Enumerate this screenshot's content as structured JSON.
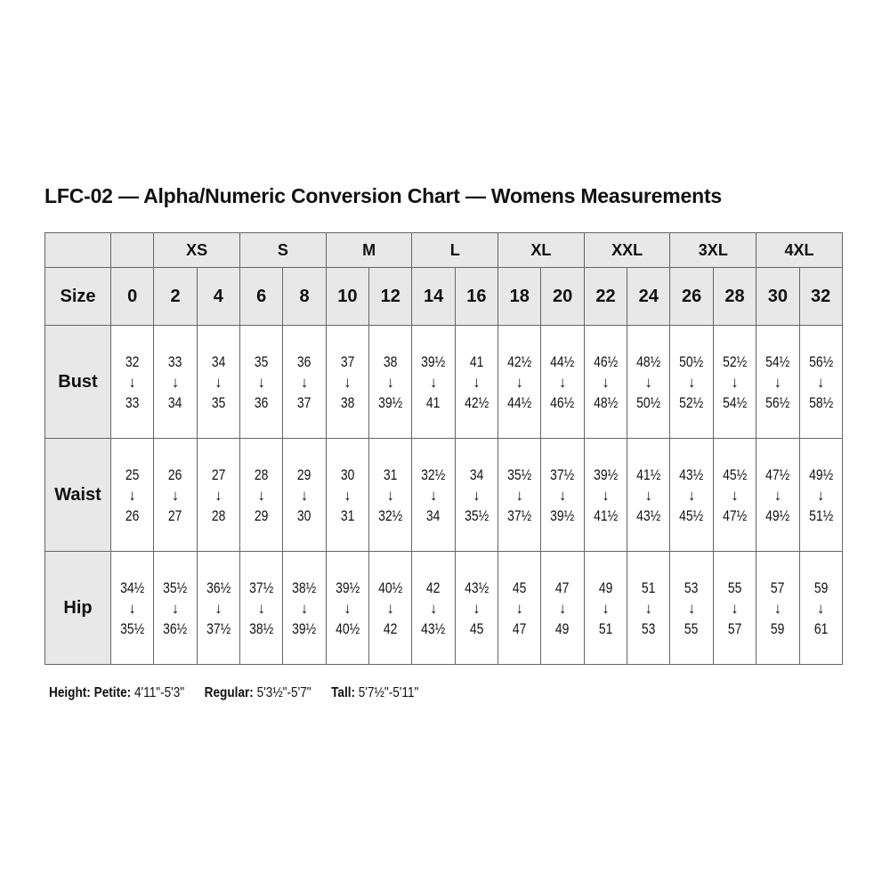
{
  "title": "LFC-02 — Alpha/Numeric Conversion Chart — Womens Measurements",
  "arrow_glyph": "↓",
  "alpha_sizes": [
    {
      "label": "",
      "span": 1
    },
    {
      "label": "XS",
      "span": 2
    },
    {
      "label": "S",
      "span": 2
    },
    {
      "label": "M",
      "span": 2
    },
    {
      "label": "L",
      "span": 2
    },
    {
      "label": "XL",
      "span": 2
    },
    {
      "label": "XXL",
      "span": 2
    },
    {
      "label": "3XL",
      "span": 2
    },
    {
      "label": "4XL",
      "span": 2
    }
  ],
  "size_row": {
    "label": "Size",
    "values": [
      "0",
      "2",
      "4",
      "6",
      "8",
      "10",
      "12",
      "14",
      "16",
      "18",
      "20",
      "22",
      "24",
      "26",
      "28",
      "30",
      "32"
    ]
  },
  "measurements": [
    {
      "label": "Bust",
      "ranges": [
        [
          "32",
          "33"
        ],
        [
          "33",
          "34"
        ],
        [
          "34",
          "35"
        ],
        [
          "35",
          "36"
        ],
        [
          "36",
          "37"
        ],
        [
          "37",
          "38"
        ],
        [
          "38",
          "39½"
        ],
        [
          "39½",
          "41"
        ],
        [
          "41",
          "42½"
        ],
        [
          "42½",
          "44½"
        ],
        [
          "44½",
          "46½"
        ],
        [
          "46½",
          "48½"
        ],
        [
          "48½",
          "50½"
        ],
        [
          "50½",
          "52½"
        ],
        [
          "52½",
          "54½"
        ],
        [
          "54½",
          "56½"
        ],
        [
          "56½",
          "58½"
        ]
      ]
    },
    {
      "label": "Waist",
      "ranges": [
        [
          "25",
          "26"
        ],
        [
          "26",
          "27"
        ],
        [
          "27",
          "28"
        ],
        [
          "28",
          "29"
        ],
        [
          "29",
          "30"
        ],
        [
          "30",
          "31"
        ],
        [
          "31",
          "32½"
        ],
        [
          "32½",
          "34"
        ],
        [
          "34",
          "35½"
        ],
        [
          "35½",
          "37½"
        ],
        [
          "37½",
          "39½"
        ],
        [
          "39½",
          "41½"
        ],
        [
          "41½",
          "43½"
        ],
        [
          "43½",
          "45½"
        ],
        [
          "45½",
          "47½"
        ],
        [
          "47½",
          "49½"
        ],
        [
          "49½",
          "51½"
        ]
      ]
    },
    {
      "label": "Hip",
      "ranges": [
        [
          "34½",
          "35½"
        ],
        [
          "35½",
          "36½"
        ],
        [
          "36½",
          "37½"
        ],
        [
          "37½",
          "38½"
        ],
        [
          "38½",
          "39½"
        ],
        [
          "39½",
          "40½"
        ],
        [
          "40½",
          "42"
        ],
        [
          "42",
          "43½"
        ],
        [
          "43½",
          "45"
        ],
        [
          "45",
          "47"
        ],
        [
          "47",
          "49"
        ],
        [
          "49",
          "51"
        ],
        [
          "51",
          "53"
        ],
        [
          "53",
          "55"
        ],
        [
          "55",
          "57"
        ],
        [
          "57",
          "59"
        ],
        [
          "59",
          "61"
        ]
      ]
    }
  ],
  "footer": {
    "height_label": "Height:",
    "petite_label": "Petite:",
    "petite_value": "4'11\"-5'3\"",
    "regular_label": "Regular:",
    "regular_value": "5'3½\"-5'7\"",
    "tall_label": "Tall:",
    "tall_value": "5'7½\"-5'11\""
  },
  "colors": {
    "header_bg": "#e8e8e9",
    "border": "#666666"
  }
}
